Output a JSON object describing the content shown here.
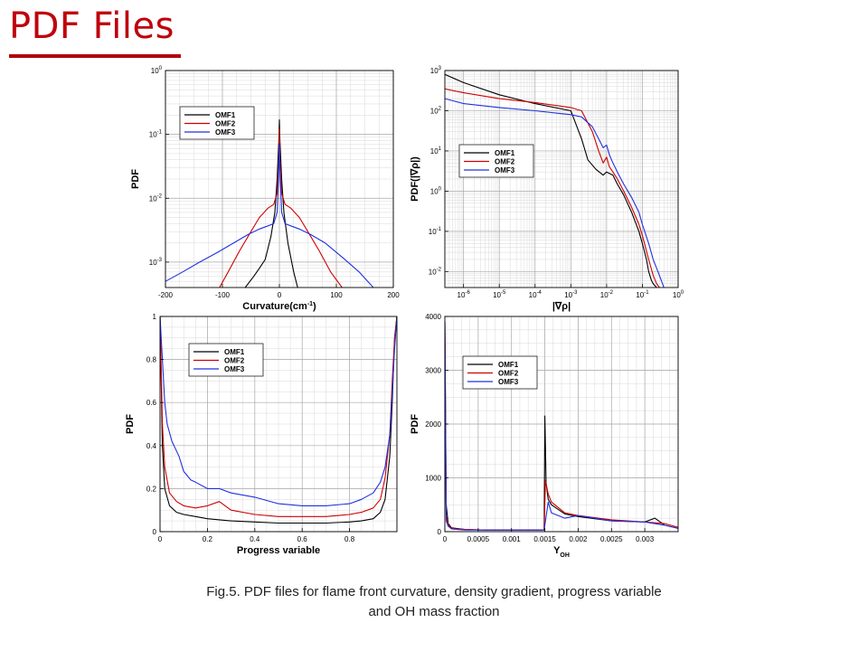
{
  "slide": {
    "title": "PDF Files"
  },
  "caption": {
    "line1": "Fig.5. PDF files for flame front curvature, density gradient, progress variable",
    "line2": "and OH mass fraction"
  },
  "colors": {
    "title": "#c0000c",
    "OMF1": "#000000",
    "OMF2": "#d00000",
    "OMF3": "#2030e0",
    "grid_major": "#a8a8a8",
    "grid_minor": "#d8d8d8"
  },
  "chart_data": [
    {
      "id": "curvature",
      "type": "line",
      "xlabel": "Curvature(cm",
      "xlabel_sup": "-1",
      "xlabel_tail": ")",
      "ylabel": "PDF",
      "xscale": "linear",
      "yscale": "log",
      "xlim": [
        -200,
        200
      ],
      "ylim": [
        0.0004,
        1
      ],
      "x_ticks": [
        -200,
        -100,
        0,
        100,
        200
      ],
      "x_tick_labels": [
        "-200",
        "-100",
        "0",
        "100",
        "200"
      ],
      "y_ticks": [
        0.001,
        0.01,
        0.1,
        1
      ],
      "y_tick_base": [
        "10",
        "10",
        "10",
        "10"
      ],
      "y_tick_exp": [
        "-3",
        "-2",
        "-1",
        "0"
      ],
      "grid": true,
      "legend_position": "top-left",
      "series": [
        {
          "name": "OMF1",
          "x": [
            -60,
            -45,
            -35,
            -25,
            -15,
            -8,
            -4,
            -1,
            0,
            1,
            4,
            8,
            15,
            25,
            32
          ],
          "y": [
            0.0004,
            0.0006,
            0.0008,
            0.0011,
            0.0025,
            0.006,
            0.02,
            0.08,
            0.17,
            0.08,
            0.02,
            0.006,
            0.002,
            0.0007,
            0.0004
          ]
        },
        {
          "name": "OMF2",
          "x": [
            -105,
            -90,
            -70,
            -50,
            -35,
            -20,
            -10,
            -4,
            -1,
            0,
            1,
            4,
            10,
            20,
            35,
            50,
            70,
            90,
            110
          ],
          "y": [
            0.0004,
            0.0007,
            0.0015,
            0.003,
            0.005,
            0.007,
            0.008,
            0.012,
            0.04,
            0.12,
            0.04,
            0.012,
            0.008,
            0.007,
            0.005,
            0.003,
            0.0015,
            0.0007,
            0.0004
          ]
        },
        {
          "name": "OMF3",
          "x": [
            -200,
            -170,
            -140,
            -110,
            -80,
            -55,
            -35,
            -20,
            -10,
            -4,
            -1,
            0,
            1,
            4,
            10,
            20,
            35,
            55,
            80,
            110,
            140,
            165
          ],
          "y": [
            0.0005,
            0.0007,
            0.001,
            0.0014,
            0.002,
            0.0027,
            0.0033,
            0.0037,
            0.004,
            0.006,
            0.03,
            0.07,
            0.03,
            0.006,
            0.004,
            0.0037,
            0.0033,
            0.0027,
            0.002,
            0.0012,
            0.0007,
            0.0004
          ]
        }
      ]
    },
    {
      "id": "density-gradient",
      "type": "line",
      "xlabel": "|∇ρ|",
      "ylabel": "PDF(|∇ρ|)",
      "xscale": "log",
      "yscale": "log",
      "xlim": [
        3e-07,
        1
      ],
      "ylim": [
        0.004,
        1000
      ],
      "x_ticks": [
        1e-06,
        1e-05,
        0.0001,
        0.001,
        0.01,
        0.1,
        1
      ],
      "x_tick_base": [
        "10",
        "10",
        "10",
        "10",
        "10",
        "10",
        "10"
      ],
      "x_tick_exp": [
        "-6",
        "-5",
        "-4",
        "-3",
        "-2",
        "-1",
        "0"
      ],
      "y_ticks": [
        0.01,
        0.1,
        1,
        10,
        100,
        1000
      ],
      "y_tick_base": [
        "10",
        "10",
        "10",
        "10",
        "10",
        "10"
      ],
      "y_tick_exp": [
        "-2",
        "-1",
        "0",
        "1",
        "2",
        "3"
      ],
      "grid": true,
      "legend_position": "center-left",
      "series": [
        {
          "name": "OMF1",
          "x": [
            3e-07,
            1e-06,
            1e-05,
            0.0001,
            0.001,
            0.002,
            0.003,
            0.005,
            0.008,
            0.01,
            0.015,
            0.02,
            0.03,
            0.05,
            0.08,
            0.1,
            0.13,
            0.15,
            0.18,
            0.2,
            0.25
          ],
          "y": [
            800,
            500,
            250,
            150,
            100,
            20,
            6,
            3.5,
            2.5,
            3,
            2.5,
            1.5,
            0.8,
            0.3,
            0.1,
            0.05,
            0.02,
            0.01,
            0.006,
            0.005,
            0.004
          ]
        },
        {
          "name": "OMF2",
          "x": [
            3e-07,
            1e-06,
            1e-05,
            0.0001,
            0.001,
            0.002,
            0.004,
            0.006,
            0.008,
            0.01,
            0.012,
            0.015,
            0.02,
            0.03,
            0.05,
            0.08,
            0.1,
            0.15,
            0.2,
            0.25,
            0.3
          ],
          "y": [
            350,
            280,
            200,
            160,
            120,
            100,
            30,
            10,
            5,
            7,
            4,
            3,
            2,
            1,
            0.4,
            0.15,
            0.08,
            0.02,
            0.008,
            0.005,
            0.004
          ]
        },
        {
          "name": "OMF3",
          "x": [
            3e-07,
            1e-06,
            1e-05,
            0.0001,
            0.001,
            0.002,
            0.004,
            0.006,
            0.008,
            0.01,
            0.012,
            0.015,
            0.02,
            0.03,
            0.05,
            0.08,
            0.1,
            0.15,
            0.2,
            0.3,
            0.4
          ],
          "y": [
            200,
            150,
            120,
            100,
            80,
            70,
            40,
            20,
            12,
            14,
            8,
            5,
            3,
            1.5,
            0.7,
            0.3,
            0.15,
            0.05,
            0.02,
            0.008,
            0.004
          ]
        }
      ]
    },
    {
      "id": "progress-variable",
      "type": "line",
      "xlabel": "Progress variable",
      "ylabel": "PDF",
      "xscale": "linear",
      "yscale": "linear",
      "xlim": [
        0,
        1
      ],
      "ylim": [
        0,
        1
      ],
      "x_ticks": [
        0,
        0.2,
        0.4,
        0.6,
        0.8
      ],
      "x_tick_labels": [
        "0",
        "0.2",
        "0.4",
        "0.6",
        "0.8"
      ],
      "y_ticks": [
        0,
        0.2,
        0.4,
        0.6,
        0.8,
        1
      ],
      "y_tick_labels": [
        "0",
        "0.2",
        "0.4",
        "0.6",
        "0.8",
        "1"
      ],
      "grid": true,
      "legend_position": "top-left",
      "series": [
        {
          "name": "OMF1",
          "x": [
            0.0,
            0.01,
            0.02,
            0.04,
            0.07,
            0.1,
            0.15,
            0.2,
            0.3,
            0.4,
            0.5,
            0.6,
            0.7,
            0.8,
            0.85,
            0.9,
            0.93,
            0.95,
            0.97,
            0.98,
            0.99,
            1.0
          ],
          "y": [
            1.0,
            0.4,
            0.2,
            0.12,
            0.09,
            0.08,
            0.07,
            0.06,
            0.05,
            0.045,
            0.04,
            0.04,
            0.04,
            0.045,
            0.05,
            0.06,
            0.09,
            0.15,
            0.35,
            0.6,
            0.9,
            1.0
          ]
        },
        {
          "name": "OMF2",
          "x": [
            0.0,
            0.01,
            0.02,
            0.04,
            0.07,
            0.1,
            0.15,
            0.2,
            0.25,
            0.3,
            0.4,
            0.5,
            0.6,
            0.7,
            0.8,
            0.85,
            0.9,
            0.93,
            0.95,
            0.97,
            0.98,
            0.99,
            1.0
          ],
          "y": [
            1.0,
            0.5,
            0.3,
            0.18,
            0.14,
            0.12,
            0.11,
            0.12,
            0.14,
            0.1,
            0.08,
            0.07,
            0.07,
            0.07,
            0.08,
            0.09,
            0.11,
            0.15,
            0.25,
            0.45,
            0.7,
            0.9,
            1.0
          ]
        },
        {
          "name": "OMF3",
          "x": [
            0.0,
            0.01,
            0.02,
            0.03,
            0.05,
            0.08,
            0.1,
            0.13,
            0.15,
            0.2,
            0.25,
            0.3,
            0.4,
            0.5,
            0.6,
            0.7,
            0.8,
            0.85,
            0.9,
            0.93,
            0.95,
            0.97,
            0.98,
            0.99,
            1.0
          ],
          "y": [
            1.0,
            0.8,
            0.6,
            0.5,
            0.42,
            0.35,
            0.28,
            0.24,
            0.23,
            0.2,
            0.2,
            0.18,
            0.16,
            0.13,
            0.12,
            0.12,
            0.13,
            0.15,
            0.18,
            0.23,
            0.3,
            0.45,
            0.65,
            0.85,
            1.0
          ]
        }
      ]
    },
    {
      "id": "oh-mass-fraction",
      "type": "line",
      "xlabel": "Y",
      "xlabel_sub": "OH",
      "ylabel": "PDF",
      "xscale": "linear",
      "yscale": "linear",
      "xlim": [
        0,
        0.0035
      ],
      "ylim": [
        0,
        4000
      ],
      "x_ticks": [
        0,
        0.0005,
        0.001,
        0.0015,
        0.002,
        0.0025,
        0.003
      ],
      "x_tick_labels": [
        "0",
        "0.0005",
        "0.001",
        "0.0015",
        "0.002",
        "0.0025",
        "0.003"
      ],
      "y_ticks": [
        0,
        1000,
        2000,
        3000,
        4000
      ],
      "y_tick_labels": [
        "0",
        "1000",
        "2000",
        "3000",
        "4000"
      ],
      "grid": true,
      "legend_position": "top-left",
      "series": [
        {
          "name": "OMF1",
          "x": [
            0,
            2e-05,
            5e-05,
            0.0001,
            0.0003,
            0.0006,
            0.001,
            0.0014,
            0.00149,
            0.0015,
            0.00152,
            0.00155,
            0.0016,
            0.0018,
            0.002,
            0.0025,
            0.003,
            0.00315,
            0.0033,
            0.0035
          ],
          "y": [
            3900,
            500,
            150,
            70,
            40,
            30,
            30,
            30,
            30,
            2150,
            900,
            600,
            500,
            330,
            280,
            200,
            180,
            250,
            120,
            60
          ]
        },
        {
          "name": "OMF2",
          "x": [
            0,
            2e-05,
            5e-05,
            0.0001,
            0.0003,
            0.0006,
            0.001,
            0.0014,
            0.00149,
            0.00151,
            0.00155,
            0.0016,
            0.0018,
            0.002,
            0.0025,
            0.003,
            0.0033,
            0.0035
          ],
          "y": [
            3900,
            300,
            120,
            60,
            40,
            30,
            30,
            30,
            30,
            950,
            700,
            550,
            350,
            300,
            220,
            180,
            150,
            80
          ]
        },
        {
          "name": "OMF3",
          "x": [
            0,
            2e-05,
            5e-05,
            0.0001,
            0.0003,
            0.0006,
            0.001,
            0.0014,
            0.00149,
            0.00151,
            0.00155,
            0.0016,
            0.0018,
            0.002,
            0.0025,
            0.003,
            0.0033,
            0.0035
          ],
          "y": [
            3900,
            200,
            100,
            50,
            30,
            30,
            30,
            30,
            30,
            200,
            550,
            350,
            250,
            300,
            200,
            180,
            120,
            60
          ]
        }
      ]
    }
  ]
}
